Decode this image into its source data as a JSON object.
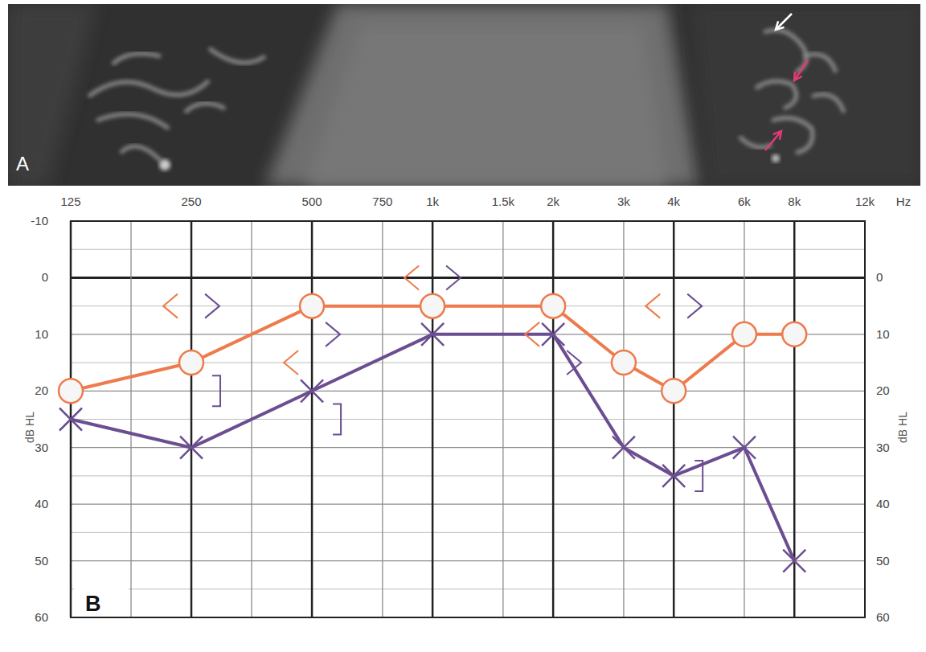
{
  "image_panel": {
    "label": "A"
  },
  "chart_data": {
    "type": "line",
    "panel_label": "B",
    "x_label": "Hz",
    "y_label": "dB HL",
    "y2_label": "dB HL",
    "log": "x",
    "grid": true,
    "xlim": [
      125,
      12000
    ],
    "xticks": [
      125,
      250,
      500,
      750,
      {
        "value": 1000,
        "label": "1k"
      },
      {
        "value": 1500,
        "label": "1.5k"
      },
      {
        "value": 2000,
        "label": "2k"
      },
      {
        "value": 3000,
        "label": "3k"
      },
      {
        "value": 4000,
        "label": "4k"
      },
      {
        "value": 6000,
        "label": "6k"
      },
      {
        "value": 8000,
        "label": "8k"
      },
      {
        "value": 12000,
        "label": "12k"
      }
    ],
    "ylim": [
      -10,
      60
    ],
    "yticks": [
      -10,
      0,
      10,
      20,
      30,
      40,
      50,
      60
    ],
    "y2lim": [
      -10,
      60
    ],
    "y2ticks": [
      0,
      10,
      20,
      30,
      40,
      50,
      60
    ],
    "x": [
      125,
      250,
      500,
      1000,
      2000,
      3000,
      4000,
      6000,
      8000
    ],
    "series": [
      {
        "type": "line",
        "color": "#ee7b4d",
        "marker": "circle",
        "line_style": "solid",
        "values": [
          20,
          15,
          5,
          5,
          5,
          15,
          20,
          10,
          10
        ]
      },
      {
        "type": "line",
        "color": "#6b4e91",
        "marker": "x",
        "line_style": "solid",
        "values": [
          25,
          30,
          20,
          10,
          10,
          30,
          35,
          30,
          50
        ]
      },
      {
        "type": "scatter",
        "color": "#ee7b4d",
        "marker": "left-angle",
        "values": [
          null,
          5,
          15,
          0,
          10,
          null,
          5,
          null,
          null
        ]
      },
      {
        "type": "scatter",
        "color": "#6b4e91",
        "marker": "right-angle",
        "values": [
          null,
          5,
          10,
          0,
          15,
          null,
          5,
          null,
          null
        ]
      },
      {
        "type": "scatter",
        "color": "#6b4e91",
        "marker": "right-bracket",
        "values": [
          null,
          20,
          25,
          null,
          null,
          null,
          35,
          null,
          null
        ]
      }
    ]
  }
}
